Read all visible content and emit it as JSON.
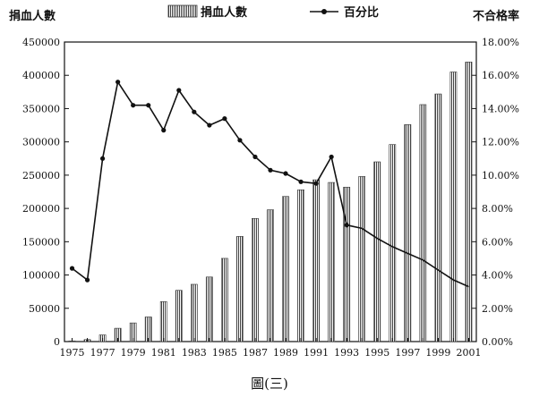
{
  "chart_data": {
    "type": "bar",
    "caption": "圖(三)",
    "left_axis_title": "捐血人數",
    "right_axis_title": "不合格率",
    "legend": [
      {
        "name": "捐血人數",
        "kind": "bar"
      },
      {
        "name": "百分比",
        "kind": "line"
      }
    ],
    "x": [
      1975,
      1976,
      1977,
      1978,
      1979,
      1980,
      1981,
      1982,
      1983,
      1984,
      1985,
      1986,
      1987,
      1988,
      1989,
      1990,
      1991,
      1992,
      1993,
      1994,
      1995,
      1996,
      1997,
      1998,
      1999,
      2000,
      2001
    ],
    "x_tick_labels": [
      "1975",
      "1977",
      "1979",
      "1981",
      "1983",
      "1985",
      "1987",
      "1989",
      "1991",
      "1993",
      "1995",
      "1997",
      "1999",
      "2001"
    ],
    "series": [
      {
        "name": "捐血人數",
        "axis": "left",
        "type": "bar",
        "values": [
          1000,
          3000,
          10000,
          20000,
          28000,
          37000,
          60000,
          77000,
          86000,
          97000,
          125000,
          158000,
          185000,
          198000,
          218000,
          228000,
          243000,
          239000,
          232000,
          248000,
          270000,
          296000,
          326000,
          356000,
          372000,
          405000,
          420000
        ]
      },
      {
        "name": "百分比",
        "axis": "right",
        "type": "line",
        "values": [
          4.4,
          3.7,
          11.0,
          15.6,
          14.2,
          14.2,
          12.7,
          15.1,
          13.8,
          13.0,
          13.4,
          12.1,
          11.1,
          10.3,
          10.1,
          9.6,
          9.5,
          11.1,
          7.0,
          6.8,
          6.2,
          5.7,
          5.3,
          4.9,
          4.3,
          3.7,
          3.3
        ]
      }
    ],
    "y_left": {
      "min": 0,
      "max": 450000,
      "ticks": [
        "0",
        "50000",
        "100000",
        "150000",
        "200000",
        "250000",
        "300000",
        "350000",
        "400000",
        "450000"
      ]
    },
    "y_right": {
      "min": 0,
      "max": 18,
      "ticks": [
        "0.00%",
        "2.00%",
        "4.00%",
        "6.00%",
        "8.00%",
        "10.00%",
        "12.00%",
        "14.00%",
        "16.00%",
        "18.00%"
      ]
    },
    "grid": false
  }
}
